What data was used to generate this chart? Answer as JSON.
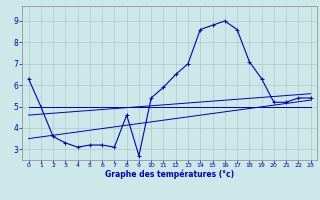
{
  "xlabel": "Graphe des températures (°c)",
  "background_color": "#cce8e8",
  "grid_color": "#aacccc",
  "line_color": "#0000bb",
  "xlim": [
    -0.5,
    23.5
  ],
  "ylim": [
    2.5,
    9.7
  ],
  "yticks": [
    3,
    4,
    5,
    6,
    7,
    8,
    9
  ],
  "xticks": [
    0,
    1,
    2,
    3,
    4,
    5,
    6,
    7,
    8,
    9,
    10,
    11,
    12,
    13,
    14,
    15,
    16,
    17,
    18,
    19,
    20,
    21,
    22,
    23
  ],
  "series_main": {
    "x": [
      0,
      1,
      2,
      3,
      4,
      5,
      6,
      7,
      8,
      9,
      10,
      11,
      12,
      13,
      14,
      15,
      16,
      17,
      18,
      19,
      20,
      21,
      22,
      23
    ],
    "y": [
      6.3,
      5.0,
      3.6,
      3.3,
      3.1,
      3.2,
      3.2,
      3.1,
      4.6,
      2.7,
      5.4,
      5.9,
      6.5,
      7.0,
      8.6,
      8.8,
      9.0,
      8.6,
      7.1,
      6.3,
      5.2,
      5.2,
      5.4,
      5.4
    ]
  },
  "series_flat": {
    "x": [
      0,
      23
    ],
    "y": [
      5.0,
      5.0
    ]
  },
  "series_diag_low": {
    "x": [
      0,
      23
    ],
    "y": [
      3.5,
      5.3
    ]
  },
  "series_diag_high": {
    "x": [
      0,
      23
    ],
    "y": [
      4.6,
      5.6
    ]
  }
}
